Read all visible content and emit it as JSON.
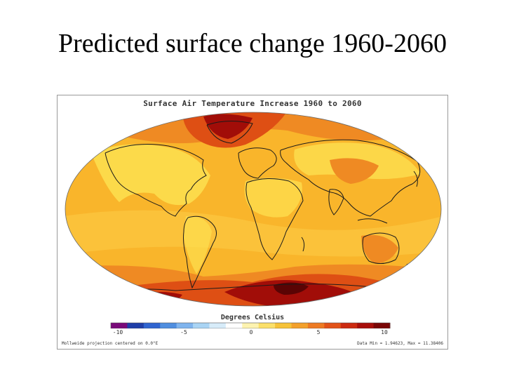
{
  "slide": {
    "title": "Predicted surface change 1960-2060"
  },
  "map": {
    "title": "Surface Air Temperature Increase 1960 to 2060",
    "projection_note": "Mollweide projection centered on 0.0°E",
    "data_range": "Data Min = 1.94623, Max = 11.38406"
  },
  "legend": {
    "title": "Degrees Celsius",
    "ticks": [
      "-10",
      "-5",
      "0",
      "5",
      "10"
    ],
    "colors": [
      "#7a0a7a",
      "#1f3ea8",
      "#2f64d0",
      "#4f8ee0",
      "#7fb4ee",
      "#a9d4f4",
      "#d7ecf9",
      "#ffffff",
      "#fdf3b0",
      "#fbe06a",
      "#f6c238",
      "#f3a02a",
      "#ee7a22",
      "#e25218",
      "#cc2a10",
      "#a80e0a",
      "#7a0606"
    ]
  },
  "colors": {
    "ocean_base": "#f9b52b",
    "land_yellow": "#fde050",
    "warm": "#ef8a23",
    "hot": "#de4f14",
    "hottest": "#a10d08",
    "coast": "#1a1a1a"
  }
}
